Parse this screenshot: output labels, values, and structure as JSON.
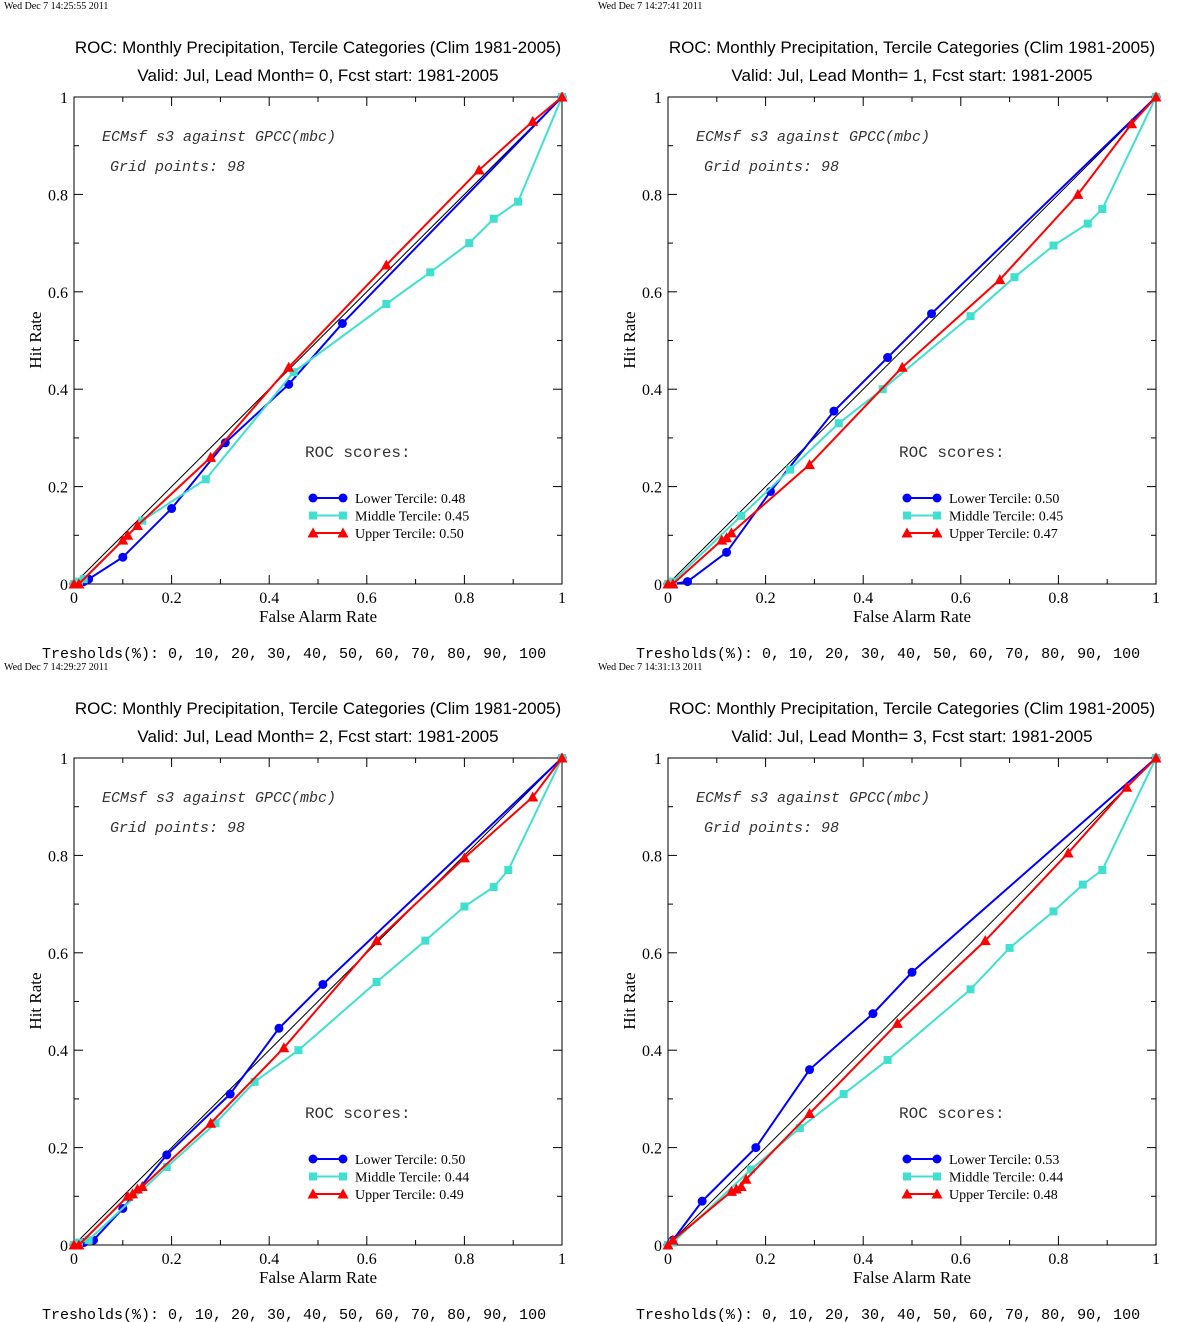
{
  "colors": {
    "lower": "#0000ff",
    "middle": "#40e0d0",
    "upper": "#ff0000",
    "diagonal": "#000000"
  },
  "common": {
    "xlabel": "False Alarm Rate",
    "ylabel": "Hit Rate",
    "annotation_line1": "ECMsf s3 against GPCC(mbc)",
    "annotation_line2": "Grid points:   98",
    "scores_title": "ROC scores:",
    "thresholds": "Tresholds(%): 0, 10, 20, 30, 40, 50, 60, 70, 80, 90, 100",
    "xticks": [
      "0",
      "0.2",
      "0.4",
      "0.6",
      "0.8",
      "1"
    ],
    "yticks": [
      "0",
      "0.2",
      "0.4",
      "0.6",
      "0.8",
      "1"
    ]
  },
  "panels": [
    {
      "timestamp": "Wed Dec  7 14:25:55 2011"
    },
    {
      "timestamp": "Wed Dec  7 14:27:41 2011"
    },
    {
      "timestamp": "Wed Dec  7 14:29:27 2011"
    },
    {
      "timestamp": "Wed Dec  7 14:31:13 2011"
    }
  ],
  "chart_data": [
    {
      "type": "line",
      "title": "ROC: Monthly Precipitation, Tercile Categories (Clim 1981-2005)",
      "subtitle": "Valid: Jul, Lead Month= 0, Fcst start: 1981-2005",
      "xlabel": "False Alarm Rate",
      "ylabel": "Hit Rate",
      "xlim": [
        0,
        1
      ],
      "ylim": [
        0,
        1
      ],
      "legend": "bottom-right",
      "series": [
        {
          "name": "Lower Tercile: 0.48",
          "color": "#0000ff",
          "marker": "circle",
          "x": [
            0,
            0.01,
            0.02,
            0.03,
            0.1,
            0.2,
            0.31,
            0.44,
            0.55,
            1
          ],
          "y": [
            0,
            0,
            0.005,
            0.01,
            0.055,
            0.155,
            0.29,
            0.41,
            0.535,
            1
          ]
        },
        {
          "name": "Middle Tercile: 0.45",
          "color": "#40e0d0",
          "marker": "square",
          "x": [
            0,
            0.01,
            0.02,
            0.14,
            0.27,
            0.45,
            0.64,
            0.73,
            0.81,
            0.86,
            0.91,
            1
          ],
          "y": [
            0,
            0.005,
            0.01,
            0.13,
            0.215,
            0.435,
            0.575,
            0.64,
            0.7,
            0.75,
            0.785,
            1
          ]
        },
        {
          "name": "Upper Tercile: 0.50",
          "color": "#ff0000",
          "marker": "triangle",
          "x": [
            0,
            0.01,
            0.1,
            0.11,
            0.13,
            0.28,
            0.44,
            0.64,
            0.83,
            0.94,
            1
          ],
          "y": [
            0,
            0,
            0.09,
            0.1,
            0.12,
            0.26,
            0.445,
            0.655,
            0.85,
            0.95,
            1
          ]
        }
      ]
    },
    {
      "type": "line",
      "title": "ROC: Monthly Precipitation, Tercile Categories (Clim 1981-2005)",
      "subtitle": "Valid: Jul, Lead Month= 1, Fcst start: 1981-2005",
      "xlabel": "False Alarm Rate",
      "ylabel": "Hit Rate",
      "xlim": [
        0,
        1
      ],
      "ylim": [
        0,
        1
      ],
      "legend": "bottom-right",
      "series": [
        {
          "name": "Lower Tercile: 0.50",
          "color": "#0000ff",
          "marker": "circle",
          "x": [
            0,
            0.01,
            0.04,
            0.12,
            0.21,
            0.34,
            0.45,
            0.54,
            1
          ],
          "y": [
            0,
            0,
            0.005,
            0.065,
            0.19,
            0.355,
            0.465,
            0.555,
            1
          ]
        },
        {
          "name": "Middle Tercile: 0.45",
          "color": "#40e0d0",
          "marker": "square",
          "x": [
            0,
            0.01,
            0.15,
            0.25,
            0.35,
            0.44,
            0.62,
            0.71,
            0.79,
            0.86,
            0.89,
            1
          ],
          "y": [
            0,
            0.005,
            0.14,
            0.235,
            0.33,
            0.4,
            0.55,
            0.63,
            0.695,
            0.74,
            0.77,
            1
          ]
        },
        {
          "name": "Upper Tercile: 0.47",
          "color": "#ff0000",
          "marker": "triangle",
          "x": [
            0,
            0.01,
            0.11,
            0.12,
            0.13,
            0.29,
            0.48,
            0.68,
            0.84,
            0.95,
            1
          ],
          "y": [
            0,
            0,
            0.09,
            0.095,
            0.105,
            0.245,
            0.445,
            0.625,
            0.8,
            0.945,
            1
          ]
        }
      ]
    },
    {
      "type": "line",
      "title": "ROC: Monthly Precipitation, Tercile Categories (Clim 1981-2005)",
      "subtitle": "Valid: Jul, Lead Month= 2, Fcst start: 1981-2005",
      "xlabel": "False Alarm Rate",
      "ylabel": "Hit Rate",
      "xlim": [
        0,
        1
      ],
      "ylim": [
        0,
        1
      ],
      "legend": "bottom-right",
      "series": [
        {
          "name": "Lower Tercile: 0.50",
          "color": "#0000ff",
          "marker": "circle",
          "x": [
            0,
            0.01,
            0.02,
            0.04,
            0.1,
            0.19,
            0.32,
            0.42,
            0.51,
            1
          ],
          "y": [
            0,
            0,
            0.005,
            0.01,
            0.075,
            0.185,
            0.31,
            0.445,
            0.535,
            1
          ]
        },
        {
          "name": "Middle Tercile: 0.44",
          "color": "#40e0d0",
          "marker": "square",
          "x": [
            0,
            0.01,
            0.03,
            0.19,
            0.29,
            0.37,
            0.46,
            0.62,
            0.72,
            0.8,
            0.86,
            0.89,
            1
          ],
          "y": [
            0,
            0.005,
            0.01,
            0.16,
            0.25,
            0.335,
            0.4,
            0.54,
            0.625,
            0.695,
            0.735,
            0.77,
            1
          ]
        },
        {
          "name": "Upper Tercile: 0.49",
          "color": "#ff0000",
          "marker": "triangle",
          "x": [
            0,
            0.01,
            0.11,
            0.12,
            0.13,
            0.14,
            0.28,
            0.43,
            0.62,
            0.8,
            0.94,
            1
          ],
          "y": [
            0,
            0,
            0.1,
            0.105,
            0.115,
            0.12,
            0.25,
            0.405,
            0.625,
            0.795,
            0.92,
            1
          ]
        }
      ]
    },
    {
      "type": "line",
      "title": "ROC: Monthly Precipitation, Tercile Categories (Clim 1981-2005)",
      "subtitle": "Valid: Jul, Lead Month= 3, Fcst start: 1981-2005",
      "xlabel": "False Alarm Rate",
      "ylabel": "Hit Rate",
      "xlim": [
        0,
        1
      ],
      "ylim": [
        0,
        1
      ],
      "legend": "bottom-right",
      "series": [
        {
          "name": "Lower Tercile: 0.53",
          "color": "#0000ff",
          "marker": "circle",
          "x": [
            0,
            0.01,
            0.07,
            0.18,
            0.29,
            0.42,
            0.5,
            1
          ],
          "y": [
            0,
            0.01,
            0.09,
            0.2,
            0.36,
            0.475,
            0.56,
            1
          ]
        },
        {
          "name": "Middle Tercile: 0.44",
          "color": "#40e0d0",
          "marker": "square",
          "x": [
            0,
            0.01,
            0.17,
            0.27,
            0.36,
            0.45,
            0.62,
            0.7,
            0.79,
            0.85,
            0.89,
            1
          ],
          "y": [
            0,
            0.005,
            0.155,
            0.24,
            0.31,
            0.38,
            0.525,
            0.61,
            0.685,
            0.74,
            0.77,
            1
          ]
        },
        {
          "name": "Upper Tercile: 0.48",
          "color": "#ff0000",
          "marker": "triangle",
          "x": [
            0,
            0.01,
            0.13,
            0.14,
            0.15,
            0.16,
            0.29,
            0.47,
            0.65,
            0.82,
            0.94,
            1
          ],
          "y": [
            0,
            0.01,
            0.11,
            0.115,
            0.12,
            0.135,
            0.27,
            0.455,
            0.625,
            0.805,
            0.94,
            1
          ]
        }
      ]
    }
  ]
}
